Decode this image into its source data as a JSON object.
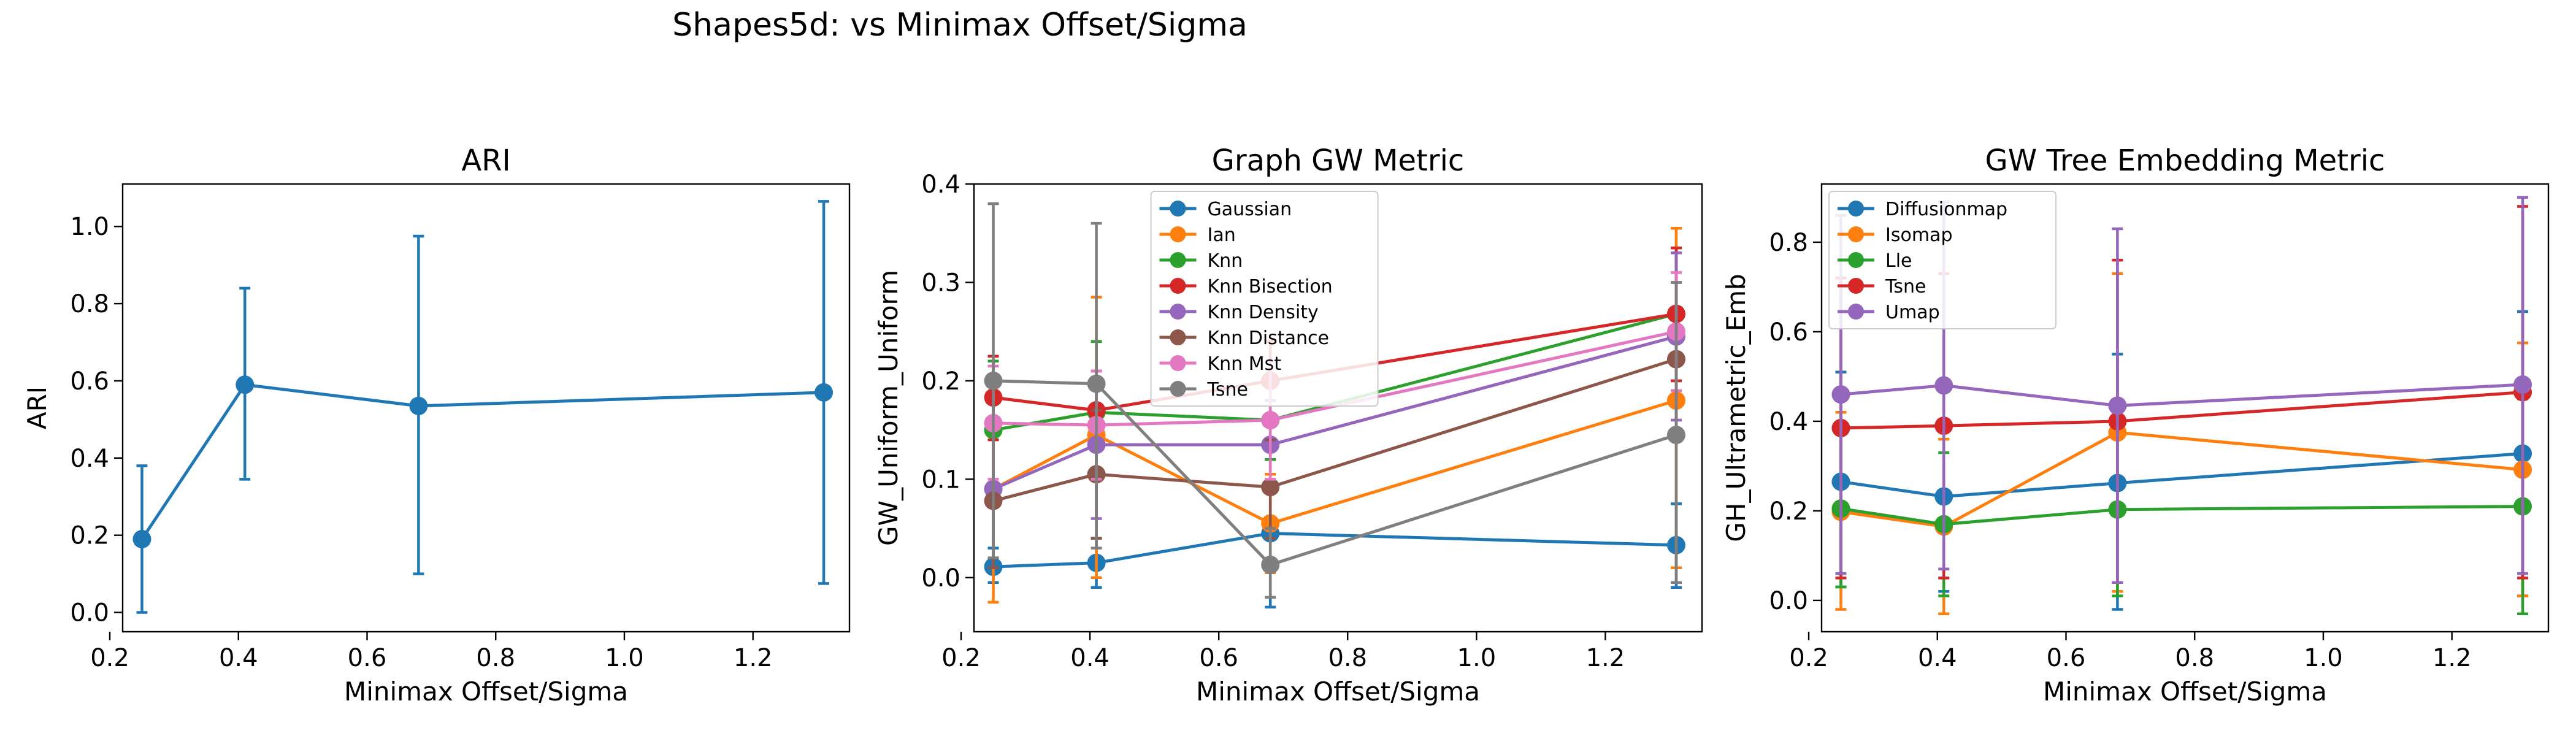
{
  "figure": {
    "suptitle": "Shapes5d: vs Minimax Offset/Sigma"
  },
  "chart_data": [
    {
      "type": "line",
      "title": "ARI",
      "xlabel": "Minimax Offset/Sigma",
      "ylabel": "ARI",
      "xlim": [
        0.22,
        1.35
      ],
      "ylim": [
        -0.05,
        1.11
      ],
      "xticks": [
        0.2,
        0.4,
        0.6,
        0.8,
        1.0,
        1.2
      ],
      "xtick_labels": [
        "0.2",
        "0.4",
        "0.6",
        "0.8",
        "1.0",
        "1.2"
      ],
      "yticks": [
        0.0,
        0.2,
        0.4,
        0.6,
        0.8,
        1.0
      ],
      "ytick_labels": [
        "0.0",
        "0.2",
        "0.4",
        "0.6",
        "0.8",
        "1.0"
      ],
      "grid": false,
      "legend": null,
      "x": [
        0.25,
        0.41,
        0.68,
        1.31
      ],
      "series": [
        {
          "color": "#1f77b4",
          "values": [
            0.19,
            0.59,
            0.535,
            0.57
          ],
          "err_low": [
            0.0,
            0.345,
            0.1,
            0.075
          ],
          "err_high": [
            0.38,
            0.84,
            0.975,
            1.065
          ]
        }
      ]
    },
    {
      "type": "line",
      "title": "Graph GW Metric",
      "xlabel": "Minimax Offset/Sigma",
      "ylabel": "GW_Uniform_Uniform",
      "xlim": [
        0.22,
        1.35
      ],
      "ylim": [
        -0.055,
        0.4
      ],
      "xticks": [
        0.2,
        0.4,
        0.6,
        0.8,
        1.0,
        1.2
      ],
      "xtick_labels": [
        "0.2",
        "0.4",
        "0.6",
        "0.8",
        "1.0",
        "1.2"
      ],
      "yticks": [
        0.0,
        0.1,
        0.2,
        0.3,
        0.4
      ],
      "ytick_labels": [
        "0.0",
        "0.1",
        "0.2",
        "0.3",
        "0.4"
      ],
      "grid": false,
      "legend": "upper center",
      "x": [
        0.25,
        0.41,
        0.68,
        1.31
      ],
      "series": [
        {
          "name": "Gaussian",
          "color": "#1f77b4",
          "values": [
            0.011,
            0.015,
            0.045,
            0.033
          ],
          "err_low": [
            -0.005,
            -0.01,
            -0.03,
            -0.01
          ],
          "err_high": [
            0.03,
            0.04,
            0.12,
            0.075
          ]
        },
        {
          "name": "Ian",
          "color": "#ff7f0e",
          "values": [
            0.09,
            0.145,
            0.055,
            0.18
          ],
          "err_low": [
            -0.025,
            0.0,
            0.005,
            0.01
          ],
          "err_high": [
            0.22,
            0.285,
            0.105,
            0.355
          ]
        },
        {
          "name": "Knn",
          "color": "#2ca02c",
          "values": [
            0.15,
            0.168,
            0.16,
            0.268
          ],
          "err_low": [
            0.08,
            0.1,
            0.12,
            0.2
          ],
          "err_high": [
            0.22,
            0.24,
            0.2,
            0.335
          ]
        },
        {
          "name": "Knn Bisection",
          "color": "#d62728",
          "values": [
            0.183,
            0.17,
            0.2,
            0.268
          ],
          "err_low": [
            0.14,
            0.13,
            0.16,
            0.2
          ],
          "err_high": [
            0.225,
            0.21,
            0.24,
            0.335
          ]
        },
        {
          "name": "Knn Density",
          "color": "#9467bd",
          "values": [
            0.09,
            0.135,
            0.135,
            0.245
          ],
          "err_low": [
            0.02,
            0.06,
            0.09,
            0.16
          ],
          "err_high": [
            0.16,
            0.21,
            0.18,
            0.33
          ]
        },
        {
          "name": "Knn Distance",
          "color": "#8c564b",
          "values": [
            0.078,
            0.105,
            0.092,
            0.222
          ],
          "err_low": [
            0.01,
            0.04,
            0.04,
            0.14
          ],
          "err_high": [
            0.15,
            0.17,
            0.14,
            0.3
          ]
        },
        {
          "name": "Knn Mst",
          "color": "#e377c2",
          "values": [
            0.157,
            0.155,
            0.16,
            0.25
          ],
          "err_low": [
            0.1,
            0.1,
            0.1,
            0.19
          ],
          "err_high": [
            0.215,
            0.21,
            0.22,
            0.31
          ]
        },
        {
          "name": "Tsne",
          "color": "#7f7f7f",
          "values": [
            0.2,
            0.197,
            0.013,
            0.145
          ],
          "err_low": [
            0.02,
            0.03,
            -0.02,
            -0.005
          ],
          "err_high": [
            0.38,
            0.36,
            0.05,
            0.3
          ]
        }
      ]
    },
    {
      "type": "line",
      "title": "GW Tree Embedding Metric",
      "xlabel": "Minimax Offset/Sigma",
      "ylabel": "GH_Ultrametric_Emb",
      "xlim": [
        0.22,
        1.35
      ],
      "ylim": [
        -0.07,
        0.93
      ],
      "xticks": [
        0.2,
        0.4,
        0.6,
        0.8,
        1.0,
        1.2
      ],
      "xtick_labels": [
        "0.2",
        "0.4",
        "0.6",
        "0.8",
        "1.0",
        "1.2"
      ],
      "yticks": [
        0.0,
        0.2,
        0.4,
        0.6,
        0.8
      ],
      "ytick_labels": [
        "0.0",
        "0.2",
        "0.4",
        "0.6",
        "0.8"
      ],
      "grid": false,
      "legend": "upper left",
      "x": [
        0.25,
        0.41,
        0.68,
        1.31
      ],
      "series": [
        {
          "name": "Diffusionmap",
          "color": "#1f77b4",
          "values": [
            0.265,
            0.232,
            0.262,
            0.328
          ],
          "err_low": [
            0.03,
            0.02,
            -0.02,
            0.01
          ],
          "err_high": [
            0.51,
            0.47,
            0.55,
            0.645
          ]
        },
        {
          "name": "Isomap",
          "color": "#ff7f0e",
          "values": [
            0.198,
            0.165,
            0.375,
            0.292
          ],
          "err_low": [
            -0.02,
            -0.03,
            0.02,
            0.01
          ],
          "err_high": [
            0.42,
            0.36,
            0.73,
            0.575
          ]
        },
        {
          "name": "Lle",
          "color": "#2ca02c",
          "values": [
            0.205,
            0.17,
            0.203,
            0.21
          ],
          "err_low": [
            0.03,
            0.01,
            0.01,
            -0.03
          ],
          "err_high": [
            0.38,
            0.33,
            0.4,
            0.45
          ]
        },
        {
          "name": "Tsne",
          "color": "#d62728",
          "values": [
            0.385,
            0.39,
            0.4,
            0.465
          ],
          "err_low": [
            0.05,
            0.05,
            0.04,
            0.05
          ],
          "err_high": [
            0.72,
            0.73,
            0.76,
            0.88
          ]
        },
        {
          "name": "Umap",
          "color": "#9467bd",
          "values": [
            0.46,
            0.48,
            0.435,
            0.482
          ],
          "err_low": [
            0.06,
            0.07,
            0.04,
            0.06
          ],
          "err_high": [
            0.86,
            0.89,
            0.83,
            0.9
          ]
        }
      ]
    }
  ]
}
